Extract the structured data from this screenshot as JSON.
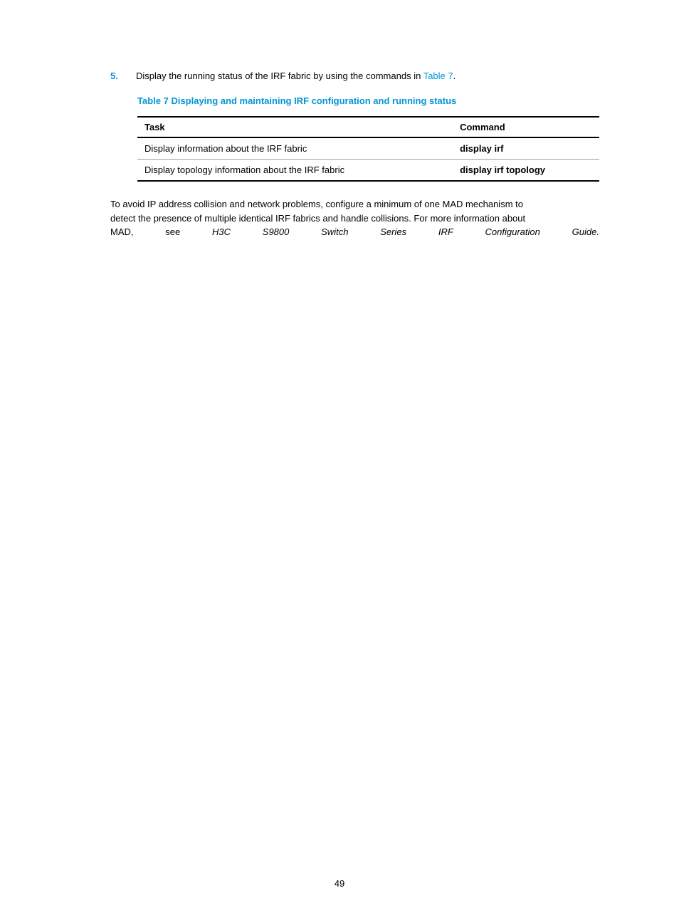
{
  "step": {
    "number": "5.",
    "text_before_link": "Display the running status of the IRF fabric by using the commands in ",
    "link_text": "Table 7",
    "text_after_link": "."
  },
  "table": {
    "caption": "Table 7 Displaying and maintaining IRF configuration and running status",
    "columns": [
      "Task",
      "Command"
    ],
    "rows": [
      [
        "Display information about the IRF fabric",
        "display irf"
      ],
      [
        "Display topology information about the IRF fabric",
        "display irf topology"
      ]
    ]
  },
  "paragraph": {
    "line1": "To avoid IP address collision and network problems, configure a minimum of one MAD mechanism to",
    "line2": "detect the presence of multiple identical IRF fabrics and handle collisions. For more information about",
    "line3_words": [
      "MAD,",
      "see",
      "H3C",
      "S9800",
      "Switch",
      "Series",
      "IRF",
      "Configuration",
      "Guide."
    ],
    "line3_italic_indices": [
      2,
      3,
      4,
      5,
      6,
      7,
      8
    ]
  },
  "page_number": "49",
  "colors": {
    "accent": "#0096d6",
    "text": "#000000",
    "background": "#ffffff",
    "row_border": "#999999"
  }
}
